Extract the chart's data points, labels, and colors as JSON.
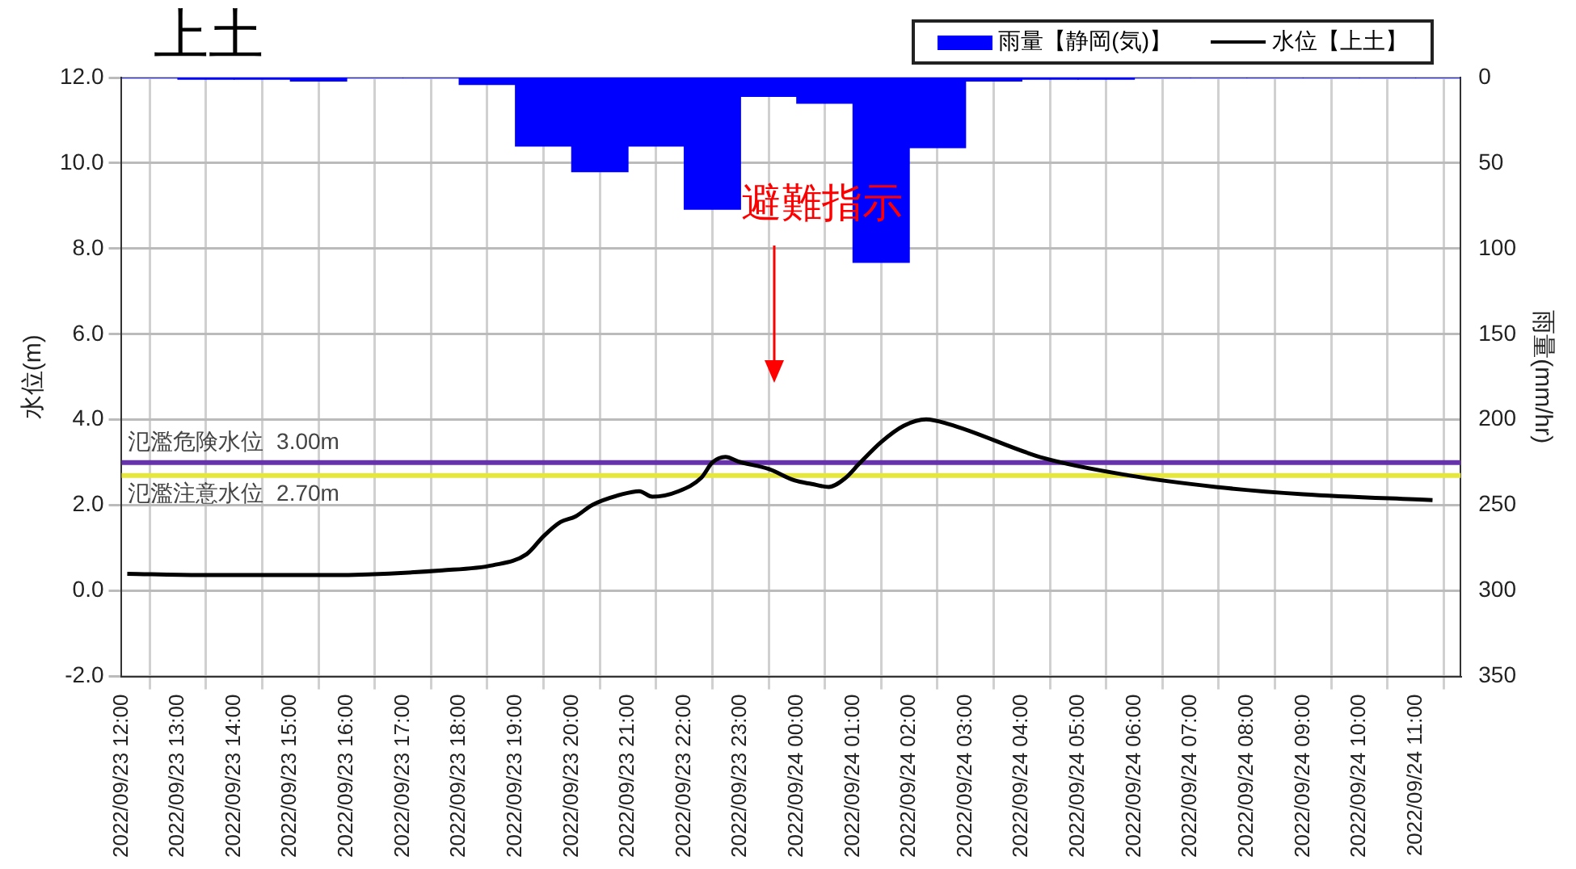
{
  "chart_data": {
    "type": "line",
    "title": "上土",
    "ylabel": "水位(m)",
    "y2label": "雨量(mm/hr)",
    "xlim": [
      "2022-09-23T12:00",
      "2022-09-24T11:48"
    ],
    "xticks": [
      {
        "value": "2022-09-23T12:00",
        "label": "2022/09/23 12:00"
      },
      {
        "value": "2022-09-23T13:00",
        "label": "2022/09/23 13:00"
      },
      {
        "value": "2022-09-23T14:00",
        "label": "2022/09/23 14:00"
      },
      {
        "value": "2022-09-23T15:00",
        "label": "2022/09/23 15:00"
      },
      {
        "value": "2022-09-23T16:00",
        "label": "2022/09/23 16:00"
      },
      {
        "value": "2022-09-23T17:00",
        "label": "2022/09/23 17:00"
      },
      {
        "value": "2022-09-23T18:00",
        "label": "2022/09/23 18:00"
      },
      {
        "value": "2022-09-23T19:00",
        "label": "2022/09/23 19:00"
      },
      {
        "value": "2022-09-23T20:00",
        "label": "2022/09/23 20:00"
      },
      {
        "value": "2022-09-23T21:00",
        "label": "2022/09/23 21:00"
      },
      {
        "value": "2022-09-23T22:00",
        "label": "2022/09/23 22:00"
      },
      {
        "value": "2022-09-23T23:00",
        "label": "2022/09/23 23:00"
      },
      {
        "value": "2022-09-24T00:00",
        "label": "2022/09/24 00:00"
      },
      {
        "value": "2022-09-24T01:00",
        "label": "2022/09/24 01:00"
      },
      {
        "value": "2022-09-24T02:00",
        "label": "2022/09/24 02:00"
      },
      {
        "value": "2022-09-24T03:00",
        "label": "2022/09/24 03:00"
      },
      {
        "value": "2022-09-24T04:00",
        "label": "2022/09/24 04:00"
      },
      {
        "value": "2022-09-24T05:00",
        "label": "2022/09/24 05:00"
      },
      {
        "value": "2022-09-24T06:00",
        "label": "2022/09/24 06:00"
      },
      {
        "value": "2022-09-24T07:00",
        "label": "2022/09/24 07:00"
      },
      {
        "value": "2022-09-24T08:00",
        "label": "2022/09/24 08:00"
      },
      {
        "value": "2022-09-24T09:00",
        "label": "2022/09/24 09:00"
      },
      {
        "value": "2022-09-24T10:00",
        "label": "2022/09/24 10:00"
      },
      {
        "value": "2022-09-24T11:00",
        "label": "2022/09/24 11:00"
      }
    ],
    "ylim": [
      -2,
      12
    ],
    "yticks": [
      {
        "value": -2,
        "label": "-2.0"
      },
      {
        "value": 0,
        "label": "0.0"
      },
      {
        "value": 2,
        "label": "2.0"
      },
      {
        "value": 4,
        "label": "4.0"
      },
      {
        "value": 6,
        "label": "6.0"
      },
      {
        "value": 8,
        "label": "8.0"
      },
      {
        "value": 10,
        "label": "10.0"
      },
      {
        "value": 12,
        "label": "12.0"
      }
    ],
    "y2lim": [
      350,
      0
    ],
    "y2ticks": [
      0,
      50,
      100,
      150,
      200,
      250,
      300,
      350
    ],
    "grid": true,
    "legend": "top right",
    "marker": "none",
    "series": [
      {
        "name": "雨量【静岡(気)】",
        "type": "bar",
        "axis": "y2",
        "color": "#0000ff",
        "x": [
          "2022-09-23T12:30",
          "2022-09-23T13:30",
          "2022-09-23T14:30",
          "2022-09-23T15:30",
          "2022-09-23T16:30",
          "2022-09-23T17:30",
          "2022-09-23T18:30",
          "2022-09-23T19:30",
          "2022-09-23T20:30",
          "2022-09-23T21:30",
          "2022-09-23T22:30",
          "2022-09-23T23:30",
          "2022-09-24T00:30",
          "2022-09-24T01:30",
          "2022-09-24T02:30",
          "2022-09-24T03:30",
          "2022-09-24T04:30",
          "2022-09-24T05:30",
          "2022-09-24T06:30",
          "2022-09-24T07:30",
          "2022-09-24T08:30",
          "2022-09-24T09:30",
          "2022-09-24T10:30",
          "2022-09-24T11:30"
        ],
        "values": [
          0,
          1,
          1,
          2,
          0,
          0,
          4,
          40,
          55,
          40,
          77,
          11,
          15,
          108,
          41,
          2,
          1,
          1,
          0,
          0,
          0,
          0,
          0,
          0
        ]
      },
      {
        "name": "水位【上土】",
        "color": "#000000",
        "x": [
          "2022-09-23T12:06",
          "2022-09-23T13:24",
          "2022-09-23T15:42",
          "2022-09-23T17:42",
          "2022-09-23T18:36",
          "2022-09-23T19:12",
          "2022-09-23T19:30",
          "2022-09-23T19:48",
          "2022-09-23T20:04",
          "2022-09-23T20:22",
          "2022-09-23T20:54",
          "2022-09-23T21:12",
          "2022-09-23T21:26",
          "2022-09-23T21:54",
          "2022-09-23T22:18",
          "2022-09-23T22:30",
          "2022-09-23T22:44",
          "2022-09-23T22:58",
          "2022-09-23T23:30",
          "2022-09-23T23:58",
          "2022-09-24T00:16",
          "2022-09-24T00:34",
          "2022-09-24T00:52",
          "2022-09-24T01:06",
          "2022-09-24T01:30",
          "2022-09-24T01:54",
          "2022-09-24T02:18",
          "2022-09-24T02:42",
          "2022-09-24T04:24",
          "2022-09-24T05:54",
          "2022-09-24T07:27",
          "2022-09-24T09:00",
          "2022-09-24T11:18"
        ],
        "values": [
          0.4,
          0.37,
          0.37,
          0.48,
          0.6,
          0.86,
          1.28,
          1.61,
          1.74,
          2.01,
          2.26,
          2.33,
          2.2,
          2.33,
          2.64,
          3.0,
          3.13,
          3.02,
          2.85,
          2.58,
          2.5,
          2.43,
          2.64,
          2.96,
          3.48,
          3.86,
          4.01,
          3.9,
          3.1,
          2.7,
          2.43,
          2.26,
          2.12
        ]
      }
    ],
    "ref_lines": [
      {
        "axis": "y",
        "value": 3.0,
        "label": "氾濫危険水位  3.00m",
        "color": "#6633aa"
      },
      {
        "axis": "y",
        "value": 2.7,
        "label": "氾濫注意水位  2.70m",
        "color": "#e6e640"
      }
    ],
    "annotations": [
      "避難指示"
    ]
  }
}
